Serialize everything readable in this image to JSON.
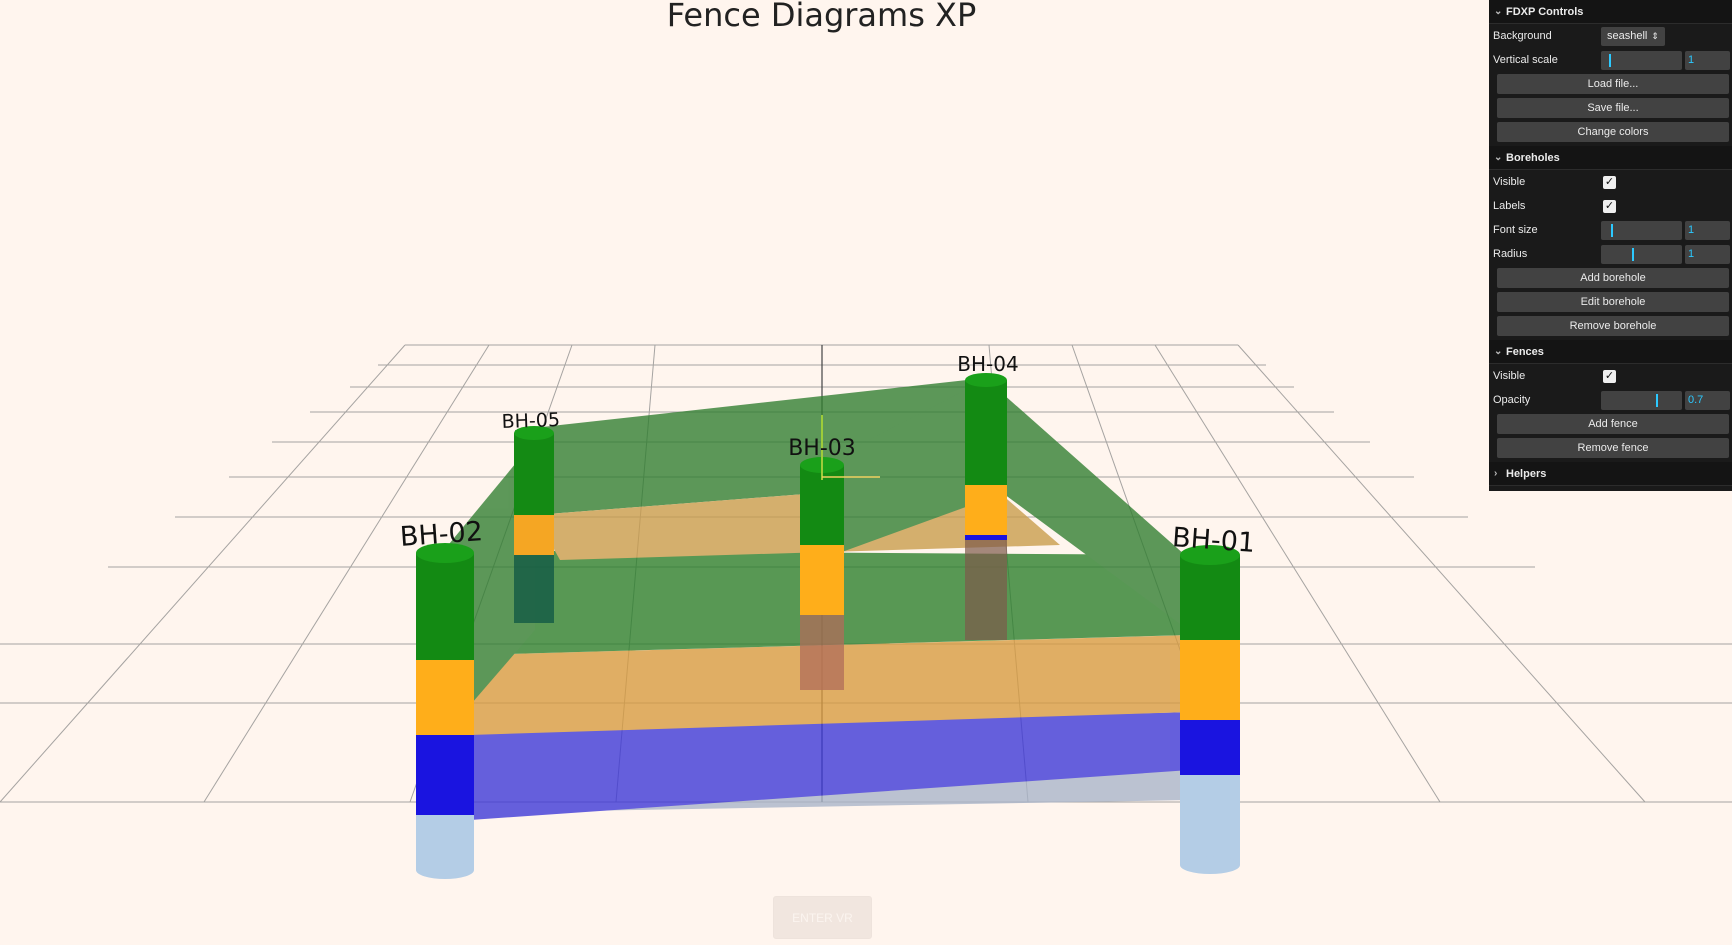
{
  "title": "Fence Diagrams XP",
  "vr_button": "ENTER VR",
  "boreholes": [
    "BH-01",
    "BH-02",
    "BH-03",
    "BH-04",
    "BH-05"
  ],
  "layer_colors": {
    "top": "#138a13",
    "middle": "#ffae1a",
    "lower": "#1a14e0",
    "bottom": "#b4cde6"
  },
  "gui": {
    "main_title": "FDXP Controls",
    "background_label": "Background",
    "background_value": "seashell",
    "vertical_scale_label": "Vertical scale",
    "vertical_scale_value": "1",
    "load_file": "Load file...",
    "save_file": "Save file...",
    "change_colors": "Change colors",
    "boreholes": {
      "title": "Boreholes",
      "visible_label": "Visible",
      "labels_label": "Labels",
      "font_size_label": "Font size",
      "font_size_value": "1",
      "radius_label": "Radius",
      "radius_value": "1",
      "add": "Add borehole",
      "edit": "Edit borehole",
      "remove": "Remove borehole"
    },
    "fences": {
      "title": "Fences",
      "visible_label": "Visible",
      "opacity_label": "Opacity",
      "opacity_value": "0.7",
      "add": "Add fence",
      "remove": "Remove fence"
    },
    "helpers": {
      "title": "Helpers"
    }
  }
}
